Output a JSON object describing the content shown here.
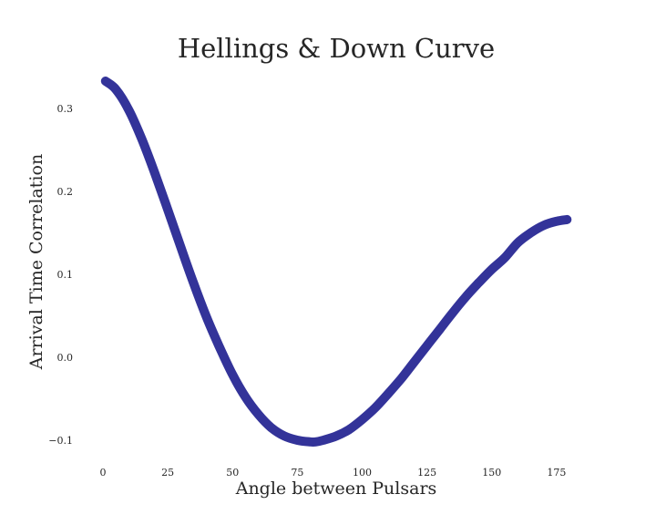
{
  "chart_data": {
    "type": "line",
    "title": "Hellings & Down Curve",
    "xlabel": "Angle between Pulsars",
    "ylabel": "Arrival Time Correlation",
    "xlim": [
      0,
      180
    ],
    "ylim": [
      -0.12,
      0.34
    ],
    "xticks": [
      "0",
      "25",
      "50",
      "75",
      "100",
      "125",
      "150",
      "175"
    ],
    "yticks": [
      "−0.1",
      "0.0",
      "0.1",
      "0.2",
      "0.3"
    ],
    "grid": false,
    "series": [
      {
        "color": "#333399",
        "x": [
          1,
          5,
          10,
          15,
          20,
          25,
          30,
          35,
          40,
          45,
          50,
          55,
          60,
          65,
          70,
          75,
          80,
          82,
          85,
          90,
          95,
          100,
          105,
          110,
          115,
          120,
          125,
          130,
          135,
          140,
          145,
          150,
          155,
          160,
          165,
          170,
          175,
          179
        ],
        "y": [
          0.333,
          0.323,
          0.298,
          0.263,
          0.222,
          0.178,
          0.133,
          0.089,
          0.048,
          0.012,
          -0.021,
          -0.048,
          -0.069,
          -0.085,
          -0.095,
          -0.1,
          -0.102,
          -0.102,
          -0.1,
          -0.095,
          -0.087,
          -0.075,
          -0.061,
          -0.044,
          -0.026,
          -0.006,
          0.014,
          0.034,
          0.054,
          0.073,
          0.09,
          0.106,
          0.12,
          0.138,
          0.15,
          0.159,
          0.164,
          0.166
        ]
      }
    ]
  }
}
